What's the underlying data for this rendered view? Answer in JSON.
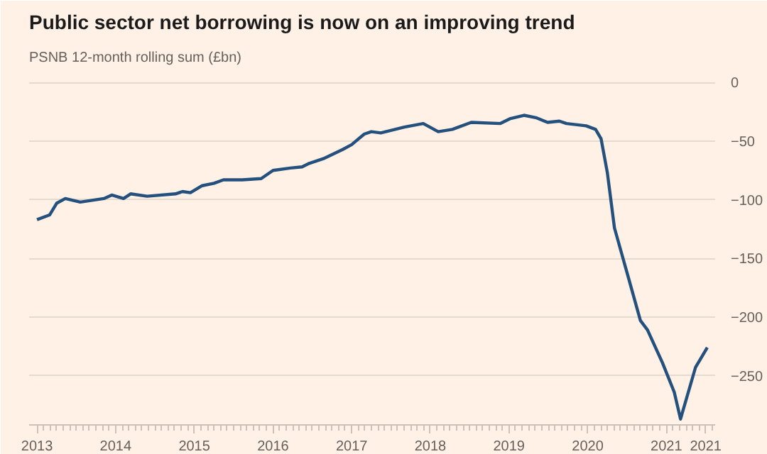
{
  "chart_data": {
    "type": "line",
    "title": "Public sector net borrowing is now on an improving trend",
    "subtitle": "PSNB 12-month rolling sum (£bn)",
    "series": [
      {
        "color": "#24507e",
        "x": [
          2013.0,
          2013.16,
          2013.25,
          2013.36,
          2013.55,
          2013.85,
          2013.95,
          2014.1,
          2014.19,
          2014.4,
          2014.76,
          2014.85,
          2014.95,
          2015.1,
          2015.25,
          2015.37,
          2015.61,
          2015.85,
          2016.0,
          2016.22,
          2016.37,
          2016.46,
          2016.64,
          2016.89,
          2017.0,
          2017.16,
          2017.25,
          2017.37,
          2017.67,
          2017.91,
          2018.1,
          2018.28,
          2018.52,
          2018.89,
          2019.01,
          2019.19,
          2019.34,
          2019.49,
          2019.64,
          2019.73,
          2019.98,
          2020.1,
          2020.17,
          2020.25,
          2020.34,
          2020.52,
          2020.67,
          2020.76,
          2020.95,
          2021.1,
          2021.18,
          2021.37,
          2021.52
        ],
        "values": [
          -117,
          -113,
          -103,
          -99,
          -102,
          -99,
          -96,
          -99,
          -95,
          -97,
          -95,
          -93,
          -94,
          -88,
          -86,
          -83,
          -83,
          -82,
          -75,
          -73,
          -72,
          -69,
          -65,
          -57,
          -53,
          -44,
          -42,
          -43,
          -38,
          -35,
          -42,
          -40,
          -34,
          -35,
          -31,
          -28,
          -30,
          -34,
          -33,
          -35,
          -37,
          -40,
          -48,
          -77,
          -124,
          -167,
          -203,
          -211,
          -239,
          -264,
          -287,
          -243,
          -226
        ]
      }
    ],
    "xlim": [
      2012.9,
      2021.62
    ],
    "xticks": [
      2013,
      2014,
      2015,
      2016,
      2017,
      2018,
      2019,
      2020,
      2021,
      {
        "value": 2021.5,
        "label": "2021"
      }
    ],
    "ylim": [
      -292,
      8
    ],
    "yticks": [
      0,
      -50,
      -100,
      -150,
      -200,
      -250
    ],
    "grid": "y",
    "line_style": "solid",
    "marker": "none"
  }
}
